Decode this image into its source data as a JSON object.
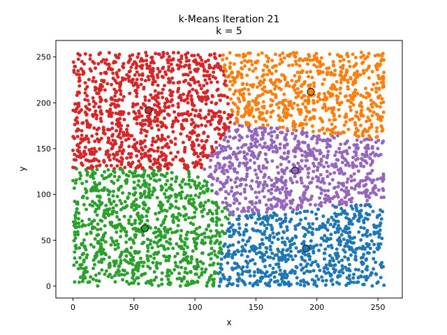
{
  "chart_data": {
    "type": "scatter",
    "title": "k-Means Iteration 21",
    "subtitle": "k = 5",
    "xlabel": "x",
    "ylabel": "y",
    "xlim": [
      -14,
      270
    ],
    "ylim": [
      -13,
      268
    ],
    "xticks": [
      "0",
      "50",
      "100",
      "150",
      "200",
      "250"
    ],
    "yticks": [
      "0",
      "50",
      "100",
      "150",
      "200",
      "250"
    ],
    "grid": false,
    "legend": "none",
    "clusters": [
      {
        "color": "#d62728",
        "centroid": [
          62,
          192
        ]
      },
      {
        "color": "#ff7f0e",
        "centroid": [
          195,
          212
        ]
      },
      {
        "color": "#9467bd",
        "centroid": [
          182,
          126
        ]
      },
      {
        "color": "#2ca02c",
        "centroid": [
          59,
          63
        ]
      },
      {
        "color": "#1f77b4",
        "centroid": [
          191,
          41
        ]
      }
    ]
  }
}
